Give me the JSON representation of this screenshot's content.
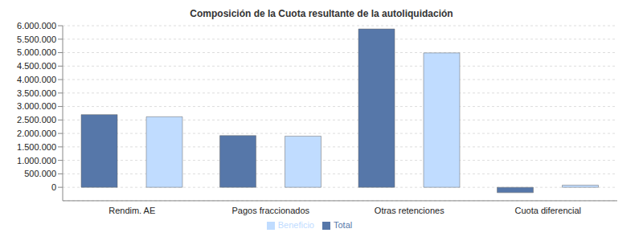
{
  "chart_data": {
    "type": "bar",
    "title": "Composición de la Cuota resultante de la autoliquidación",
    "categories": [
      "Rendim. AE",
      "Pagos fraccionados",
      "Otras retenciones",
      "Cuota diferencial"
    ],
    "series": [
      {
        "name": "Total",
        "color": "#5677a9",
        "values": [
          2700000,
          1920000,
          5880000,
          -200000
        ]
      },
      {
        "name": "Beneficio",
        "color": "#c0dcff",
        "values": [
          2620000,
          1900000,
          4990000,
          80000
        ]
      }
    ],
    "ylim": [
      -500000,
      6000000
    ],
    "yticks": [
      0,
      {
        "value": 500000,
        "label": "500.000"
      },
      {
        "value": 1000000,
        "label": "1.000.000"
      },
      {
        "value": 1500000,
        "label": "1.500.000"
      },
      {
        "value": 2000000,
        "label": "2.000.000"
      },
      {
        "value": 2500000,
        "label": "2.500.000"
      },
      {
        "value": 3000000,
        "label": "3.000.000"
      },
      {
        "value": 3500000,
        "label": "3.500.000"
      },
      {
        "value": 4000000,
        "label": "4.000.000"
      },
      {
        "value": 4500000,
        "label": "4.500.000"
      },
      {
        "value": 5000000,
        "label": "5.000.000"
      },
      {
        "value": 5500000,
        "label": "5.500.000"
      },
      {
        "value": 6000000,
        "label": "6.000.000"
      }
    ],
    "grid": true,
    "legend": "bottom"
  }
}
